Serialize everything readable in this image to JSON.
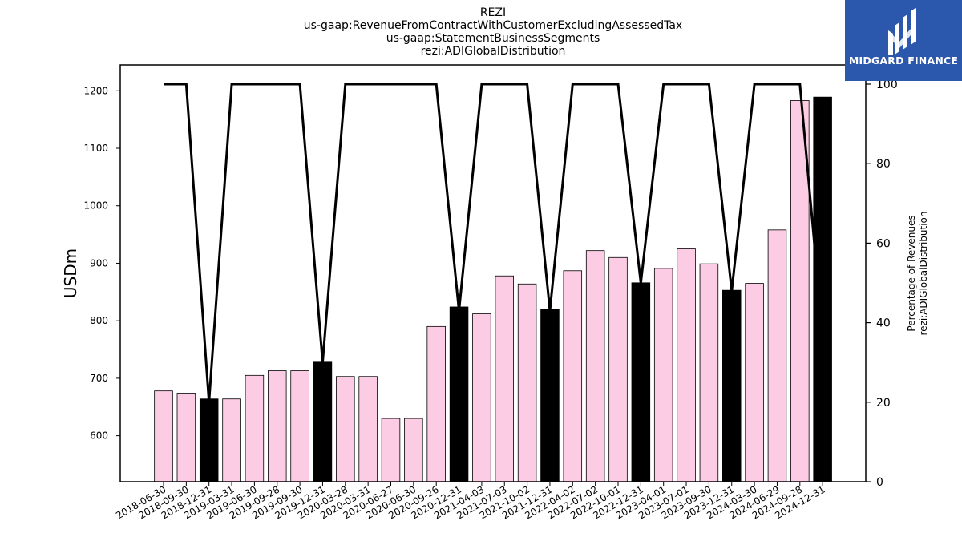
{
  "chart_data": {
    "type": "bar",
    "title_lines": [
      "REZI",
      "us-gaap:RevenueFromContractWithCustomerExcludingAssessedTax",
      "us-gaap:StatementBusinessSegments",
      "rezi:ADIGlobalDistribution"
    ],
    "ylabel": "USDm",
    "y2label_lines": [
      "Percentage of Revenues",
      "rezi:ADIGlobalDistribution"
    ],
    "categories": [
      "2018-06-30",
      "2018-09-30",
      "2018-12-31",
      "2019-03-31",
      "2019-06-30",
      "2019-09-28",
      "2019-09-30",
      "2019-12-31",
      "2020-03-28",
      "2020-03-31",
      "2020-06-27",
      "2020-06-30",
      "2020-09-26",
      "2020-12-31",
      "2021-04-03",
      "2021-07-03",
      "2021-10-02",
      "2021-12-31",
      "2022-04-02",
      "2022-07-02",
      "2022-10-01",
      "2022-12-31",
      "2023-04-01",
      "2023-07-01",
      "2023-09-30",
      "2023-12-31",
      "2024-03-30",
      "2024-06-29",
      "2024-09-28",
      "2024-12-31"
    ],
    "series": [
      {
        "values": [
          678,
          674,
          664,
          664,
          705,
          713,
          713,
          728,
          703,
          703,
          630,
          630,
          790,
          824,
          812,
          878,
          864,
          820,
          887,
          922,
          910,
          866,
          891,
          925,
          899,
          853,
          865,
          958,
          1183,
          1189
        ],
        "highlight": [
          false,
          false,
          true,
          false,
          false,
          false,
          false,
          true,
          false,
          false,
          false,
          false,
          false,
          true,
          false,
          false,
          false,
          true,
          false,
          false,
          false,
          true,
          false,
          false,
          false,
          true,
          false,
          false,
          false,
          true
        ],
        "colors": {
          "normal": "#fccce4",
          "highlight": "#000000"
        }
      },
      {
        "type": "line",
        "axis": "right",
        "values": [
          100,
          100,
          20,
          100,
          100,
          100,
          100,
          30,
          100,
          100,
          100,
          100,
          100,
          43,
          100,
          100,
          100,
          43,
          100,
          100,
          100,
          50,
          100,
          100,
          100,
          48,
          100,
          100,
          100,
          37
        ],
        "color": "#000000"
      }
    ],
    "ylim": [
      520,
      1245
    ],
    "yticks": [
      600,
      700,
      800,
      900,
      1000,
      1100,
      1200
    ],
    "y2lim": [
      0,
      100
    ],
    "y2ticks": [
      0,
      20,
      40,
      60,
      80,
      100
    ]
  },
  "logo": {
    "text": "MIDGARD FINANCE"
  }
}
